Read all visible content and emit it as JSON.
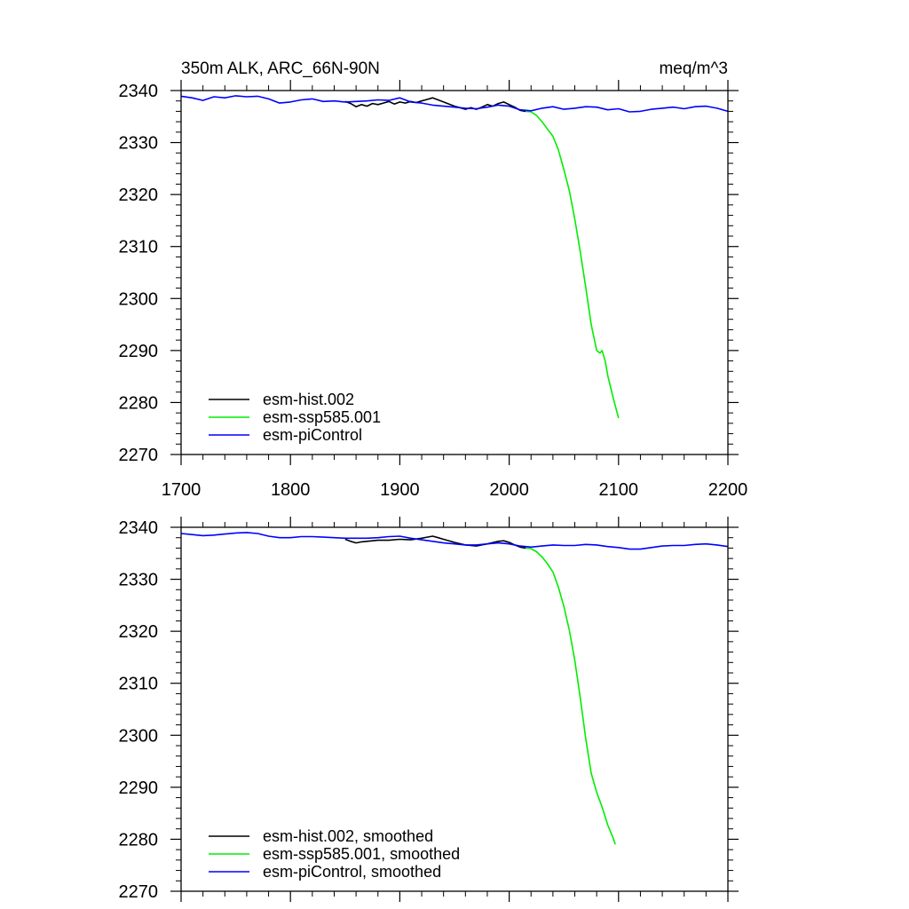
{
  "chart_data": [
    {
      "type": "line",
      "title": "350m ALK, ARC_66N-90N",
      "units": "meq/m^3",
      "xlim": [
        1700,
        2200
      ],
      "ylim": [
        2270,
        2340
      ],
      "xticks": [
        1700,
        1800,
        1900,
        2000,
        2100,
        2200
      ],
      "yticks": [
        2270,
        2280,
        2290,
        2300,
        2310,
        2320,
        2330,
        2340
      ],
      "grid": false,
      "legend_position": "bottom-left",
      "series": [
        {
          "name": "esm-hist.002",
          "color": "#000000",
          "x": [
            1850,
            1855,
            1860,
            1865,
            1870,
            1875,
            1880,
            1885,
            1890,
            1895,
            1900,
            1905,
            1910,
            1915,
            1920,
            1925,
            1930,
            1935,
            1940,
            1945,
            1950,
            1955,
            1960,
            1965,
            1970,
            1975,
            1980,
            1985,
            1990,
            1995,
            2000,
            2005,
            2010,
            2015
          ],
          "values": [
            2337.9,
            2337.5,
            2336.9,
            2337.3,
            2337.0,
            2337.5,
            2337.3,
            2337.6,
            2337.9,
            2337.4,
            2337.8,
            2337.6,
            2337.9,
            2337.7,
            2338.0,
            2338.3,
            2338.6,
            2338.2,
            2337.8,
            2337.4,
            2337.0,
            2336.7,
            2336.4,
            2336.7,
            2336.4,
            2336.8,
            2337.3,
            2337.0,
            2337.5,
            2337.8,
            2337.3,
            2336.8,
            2336.2,
            2336.0
          ]
        },
        {
          "name": "esm-ssp585.001",
          "color": "#00ee00",
          "x": [
            2015,
            2020,
            2025,
            2030,
            2035,
            2040,
            2045,
            2050,
            2055,
            2060,
            2065,
            2070,
            2075,
            2080,
            2083,
            2085,
            2088,
            2090,
            2095,
            2100
          ],
          "values": [
            2336.0,
            2335.9,
            2335.2,
            2334.0,
            2332.6,
            2331.2,
            2328.6,
            2324.8,
            2320.7,
            2315.3,
            2309.0,
            2302.2,
            2295.0,
            2290.0,
            2289.5,
            2290.0,
            2287.8,
            2285.3,
            2281.0,
            2277.0
          ]
        },
        {
          "name": "esm-piControl",
          "color": "#0000ff",
          "x": [
            1700,
            1710,
            1720,
            1730,
            1740,
            1750,
            1760,
            1770,
            1780,
            1790,
            1800,
            1810,
            1820,
            1830,
            1840,
            1850,
            1860,
            1870,
            1880,
            1890,
            1900,
            1910,
            1920,
            1930,
            1940,
            1950,
            1960,
            1970,
            1980,
            1990,
            2000,
            2010,
            2020,
            2030,
            2040,
            2050,
            2060,
            2070,
            2080,
            2090,
            2100,
            2110,
            2120,
            2130,
            2140,
            2150,
            2160,
            2170,
            2180,
            2190,
            2200
          ],
          "values": [
            2338.9,
            2338.6,
            2338.1,
            2338.8,
            2338.6,
            2339.0,
            2338.8,
            2338.9,
            2338.4,
            2337.6,
            2337.8,
            2338.2,
            2338.4,
            2337.9,
            2338.0,
            2337.8,
            2337.9,
            2338.0,
            2338.2,
            2338.1,
            2338.6,
            2337.8,
            2337.6,
            2337.2,
            2337.0,
            2336.8,
            2336.6,
            2336.5,
            2336.8,
            2337.2,
            2337.0,
            2336.3,
            2336.1,
            2336.6,
            2336.9,
            2336.4,
            2336.6,
            2336.9,
            2336.8,
            2336.3,
            2336.5,
            2335.9,
            2336.0,
            2336.4,
            2336.6,
            2336.8,
            2336.5,
            2336.9,
            2337.0,
            2336.6,
            2336.0
          ]
        }
      ]
    },
    {
      "type": "line",
      "title": "",
      "units": "",
      "xlim": [
        1700,
        2200
      ],
      "ylim": [
        2270,
        2340
      ],
      "xticks": [
        1700,
        1800,
        1900,
        2000,
        2100,
        2200
      ],
      "yticks": [
        2270,
        2280,
        2290,
        2300,
        2310,
        2320,
        2330,
        2340
      ],
      "show_x_tick_labels": false,
      "grid": false,
      "legend_position": "bottom-left",
      "series": [
        {
          "name": "esm-hist.002, smoothed",
          "color": "#000000",
          "x": [
            1850,
            1855,
            1860,
            1865,
            1870,
            1880,
            1890,
            1900,
            1910,
            1920,
            1925,
            1930,
            1935,
            1940,
            1950,
            1960,
            1965,
            1970,
            1975,
            1980,
            1990,
            1995,
            2000,
            2005,
            2010,
            2015
          ],
          "values": [
            2337.7,
            2337.3,
            2337.0,
            2337.2,
            2337.3,
            2337.5,
            2337.5,
            2337.7,
            2337.6,
            2337.9,
            2338.1,
            2338.3,
            2338.0,
            2337.7,
            2337.1,
            2336.6,
            2336.5,
            2336.4,
            2336.6,
            2336.8,
            2337.3,
            2337.4,
            2337.1,
            2336.6,
            2336.2,
            2336.0
          ]
        },
        {
          "name": "esm-ssp585.001, smoothed",
          "color": "#00ee00",
          "x": [
            2015,
            2020,
            2025,
            2030,
            2035,
            2040,
            2045,
            2050,
            2055,
            2060,
            2065,
            2070,
            2075,
            2080,
            2085,
            2090,
            2095,
            2097
          ],
          "values": [
            2336.0,
            2335.9,
            2335.3,
            2334.3,
            2333.0,
            2331.4,
            2328.5,
            2324.8,
            2320.2,
            2314.4,
            2307.2,
            2299.4,
            2292.7,
            2289.0,
            2286.2,
            2282.8,
            2280.3,
            2279.0
          ]
        },
        {
          "name": "esm-piControl, smoothed",
          "color": "#0000ff",
          "x": [
            1700,
            1710,
            1720,
            1730,
            1740,
            1750,
            1760,
            1770,
            1780,
            1790,
            1800,
            1810,
            1820,
            1830,
            1840,
            1850,
            1860,
            1870,
            1880,
            1890,
            1900,
            1910,
            1920,
            1930,
            1940,
            1950,
            1960,
            1970,
            1980,
            1990,
            2000,
            2010,
            2020,
            2030,
            2040,
            2050,
            2060,
            2070,
            2080,
            2090,
            2100,
            2110,
            2120,
            2130,
            2140,
            2150,
            2160,
            2170,
            2180,
            2190,
            2200
          ],
          "values": [
            2338.8,
            2338.6,
            2338.4,
            2338.5,
            2338.7,
            2338.9,
            2339.0,
            2338.8,
            2338.3,
            2338.0,
            2338.0,
            2338.2,
            2338.2,
            2338.1,
            2338.0,
            2337.9,
            2337.9,
            2337.9,
            2338.0,
            2338.2,
            2338.3,
            2337.9,
            2337.6,
            2337.3,
            2337.0,
            2336.8,
            2336.6,
            2336.6,
            2336.8,
            2337.0,
            2336.8,
            2336.4,
            2336.2,
            2336.4,
            2336.6,
            2336.5,
            2336.5,
            2336.7,
            2336.6,
            2336.3,
            2336.1,
            2335.8,
            2335.8,
            2336.1,
            2336.4,
            2336.5,
            2336.5,
            2336.7,
            2336.8,
            2336.6,
            2336.3
          ]
        }
      ]
    }
  ]
}
